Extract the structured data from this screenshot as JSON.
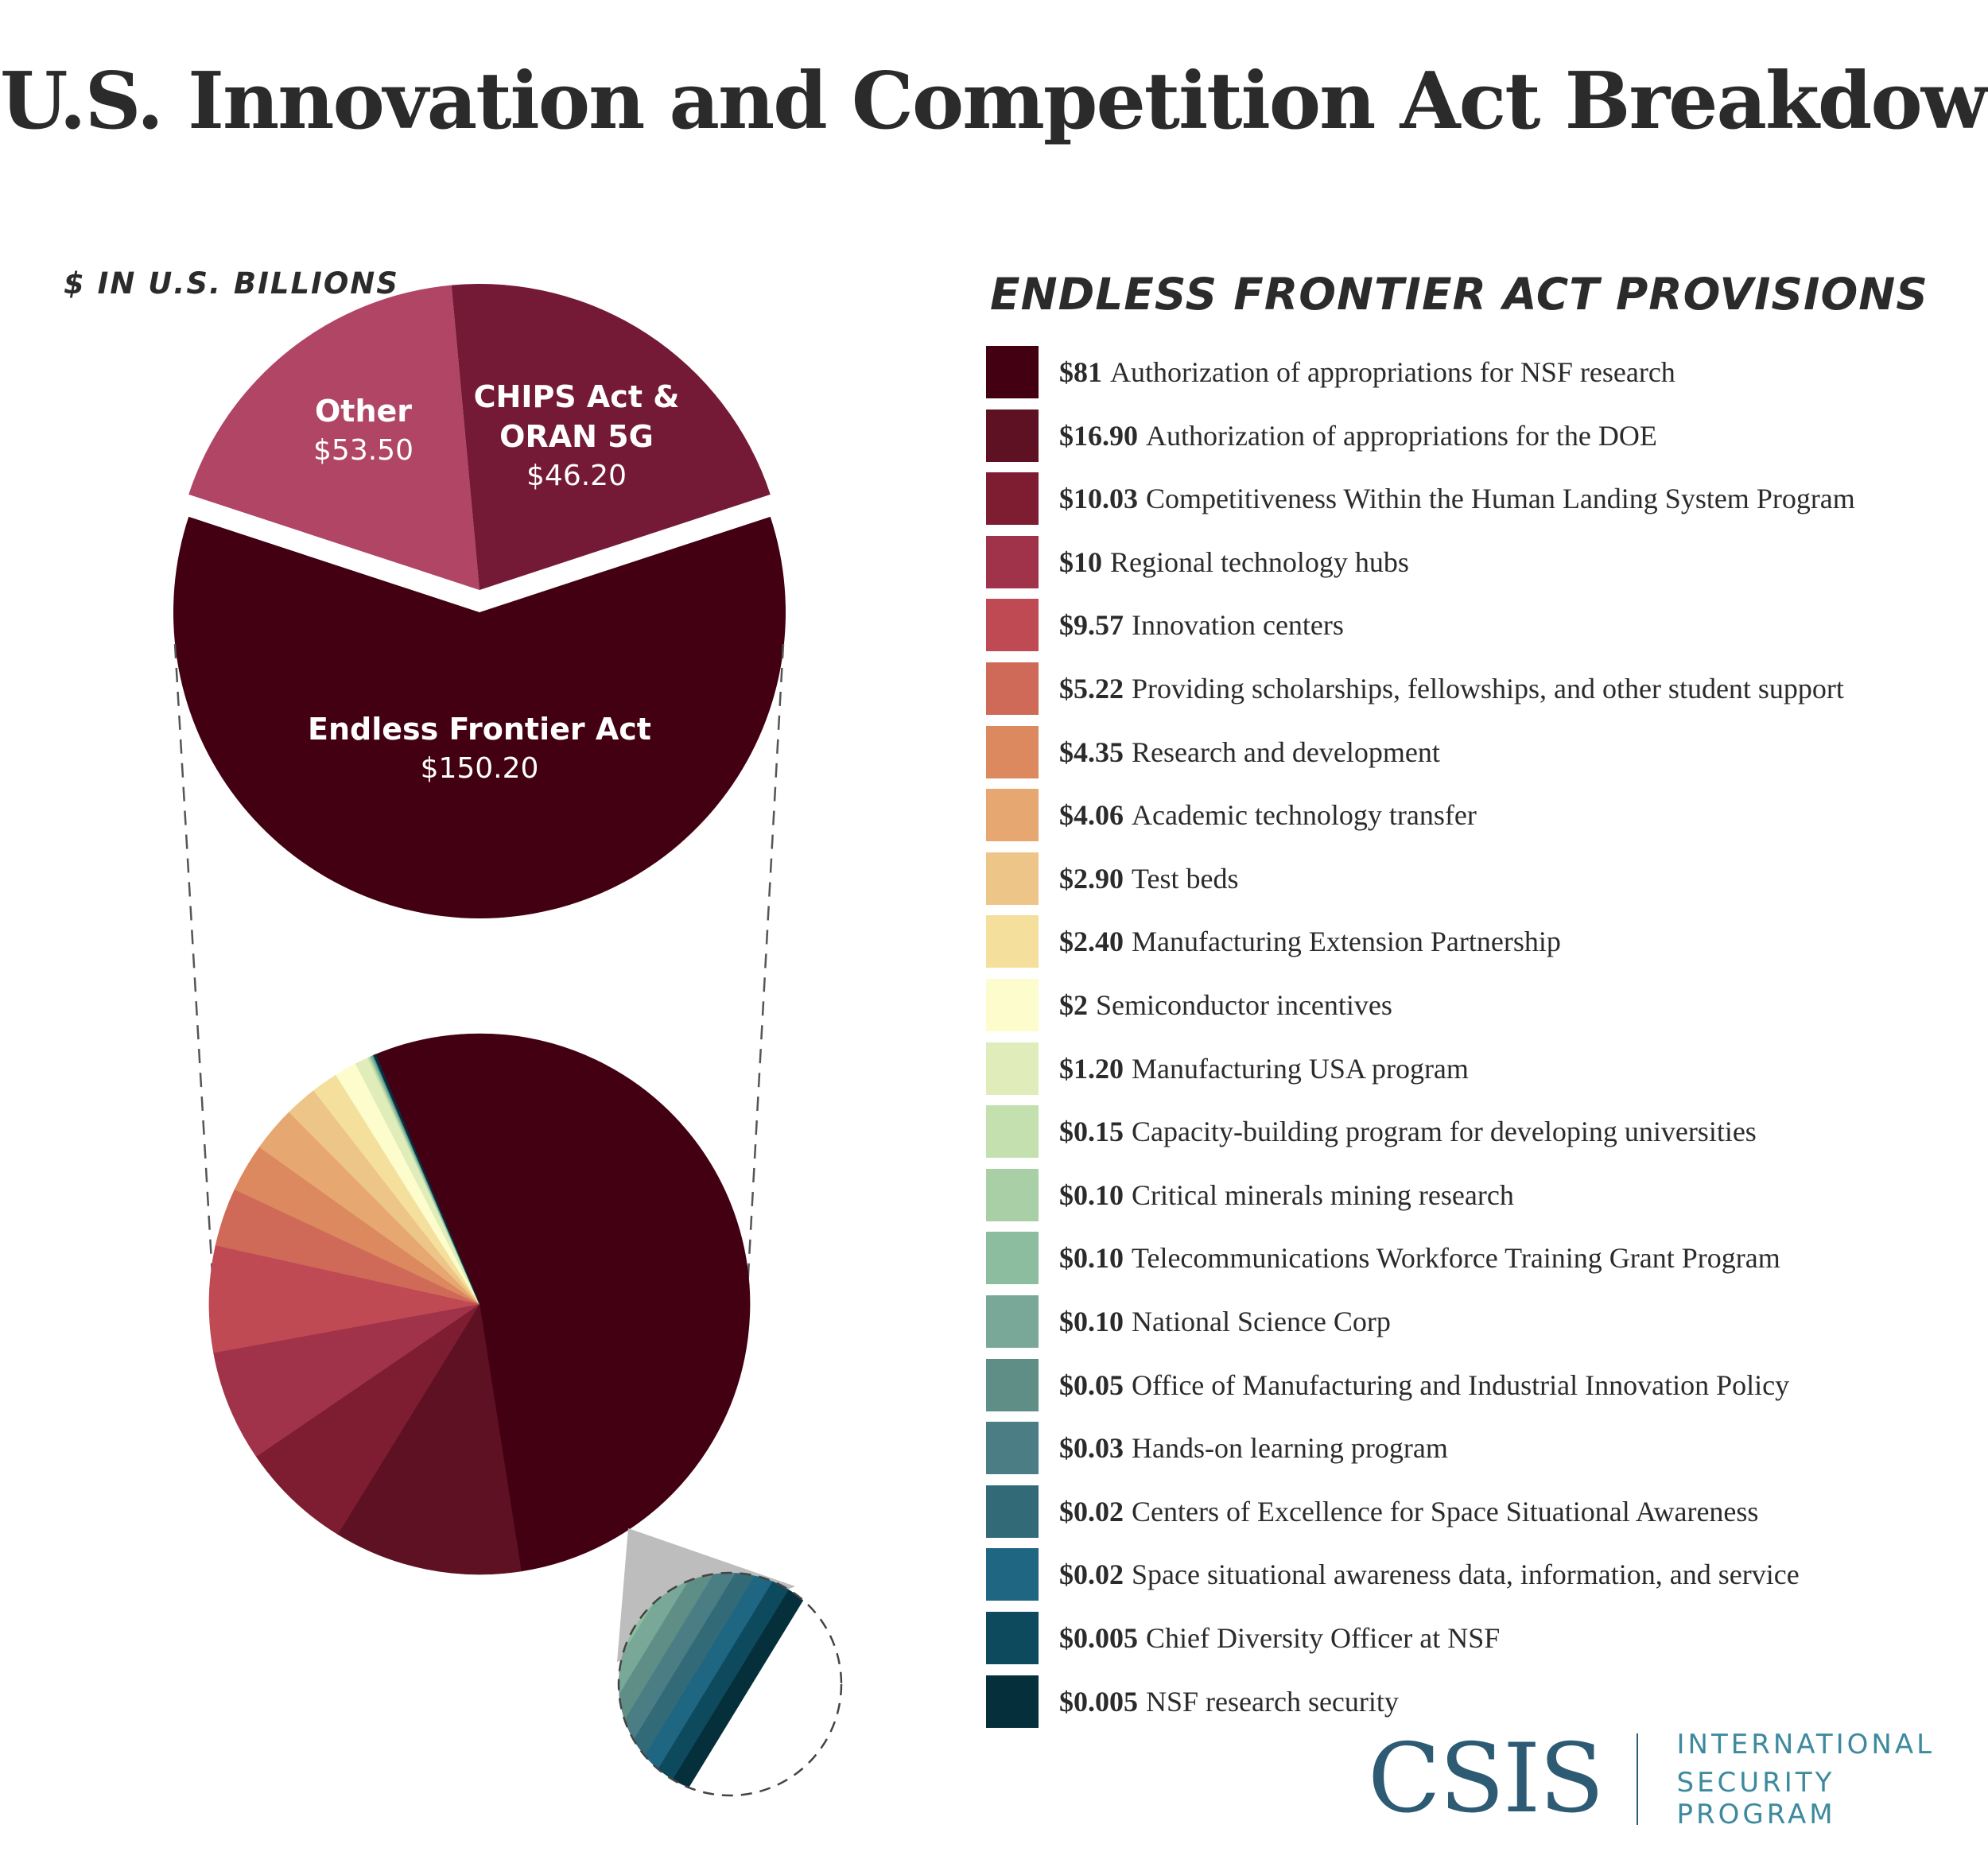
{
  "title": "U.S. Innovation and Competition Act Breakdown",
  "units_label": "$ IN U.S. BILLIONS",
  "legend_title": "ENDLESS FRONTIER ACT PROVISIONS",
  "chart_data": [
    {
      "type": "pie",
      "title": "U.S. Innovation and Competition Act Breakdown",
      "units": "$ IN U.S. BILLIONS",
      "slices": [
        {
          "name": "Endless Frontier Act",
          "value_label": "$150.20",
          "value": 150.2,
          "color": "#420012"
        },
        {
          "name_lines": [
            "CHIPS Act &",
            "ORAN 5G"
          ],
          "name": "CHIPS Act & ORAN 5G",
          "value_label": "$46.20",
          "value": 46.2,
          "color": "#b04566"
        },
        {
          "name": "Other",
          "value_label": "$53.50",
          "value": 53.5,
          "color": "#741a36"
        }
      ]
    },
    {
      "type": "pie",
      "title": "ENDLESS FRONTIER ACT PROVISIONS",
      "units": "$ IN U.S. BILLIONS",
      "slices": [
        {
          "amount": "$81",
          "label": "Authorization of appropriations for NSF research",
          "value": 81,
          "color": "#420012"
        },
        {
          "amount": "$16.90",
          "label": "Authorization of appropriations for the DOE",
          "value": 16.9,
          "color": "#5e1122"
        },
        {
          "amount": "$10.03",
          "label": "Competitiveness Within the Human Landing System Program",
          "value": 10.03,
          "color": "#7e1d31"
        },
        {
          "amount": "$10",
          "label": "Regional technology hubs",
          "value": 10,
          "color": "#a0334a"
        },
        {
          "amount": "$9.57",
          "label": "Innovation centers",
          "value": 9.57,
          "color": "#c04a54"
        },
        {
          "amount": "$5.22",
          "label": "Providing scholarships, fellowships, and other student support",
          "value": 5.22,
          "color": "#d06a58"
        },
        {
          "amount": "$4.35",
          "label": "Research and development",
          "value": 4.35,
          "color": "#dc8960"
        },
        {
          "amount": "$4.06",
          "label": "Academic technology transfer",
          "value": 4.06,
          "color": "#e6a870"
        },
        {
          "amount": "$2.90",
          "label": "Test beds",
          "value": 2.9,
          "color": "#eec588"
        },
        {
          "amount": "$2.40",
          "label": "Manufacturing Extension Partnership",
          "value": 2.4,
          "color": "#f4e09c"
        },
        {
          "amount": "$2",
          "label": "Semiconductor incentives",
          "value": 2,
          "color": "#fcfccc"
        },
        {
          "amount": "$1.20",
          "label": "Manufacturing USA program",
          "value": 1.2,
          "color": "#e0edba"
        },
        {
          "amount": "$0.15",
          "label": "Capacity-building program for developing universities",
          "value": 0.15,
          "color": "#c4e0ae"
        },
        {
          "amount": "$0.10",
          "label": "Critical minerals mining research",
          "value": 0.1,
          "color": "#a8cfa6"
        },
        {
          "amount": "$0.10",
          "label": "Telecommunications Workforce Training Grant Program",
          "value": 0.1,
          "color": "#8dbd9f"
        },
        {
          "amount": "$0.10",
          "label": "National Science Corp",
          "value": 0.1,
          "color": "#79a898"
        },
        {
          "amount": "$0.05",
          "label": "Office of Manufacturing and Industrial Innovation Policy",
          "value": 0.05,
          "color": "#5f8e86"
        },
        {
          "amount": "$0.03",
          "label": "Hands-on learning program",
          "value": 0.03,
          "color": "#4a7e84"
        },
        {
          "amount": "$0.02",
          "label": "Centers of Excellence for Space Situational Awareness",
          "value": 0.02,
          "color": "#336a78"
        },
        {
          "amount": "$0.02",
          "label": "Space situational awareness data, information, and service",
          "value": 0.02,
          "color": "#1e6682"
        },
        {
          "amount": "$0.005",
          "label": "Chief Diversity Officer at NSF",
          "value": 0.005,
          "color": "#0e4a5e"
        },
        {
          "amount": "$0.005",
          "label": "NSF research security",
          "value": 0.005,
          "color": "#062f3c"
        }
      ]
    }
  ],
  "logo": {
    "wordmark": "CSIS",
    "program_line1": "INTERNATIONAL",
    "program_line2": "SECURITY PROGRAM"
  }
}
